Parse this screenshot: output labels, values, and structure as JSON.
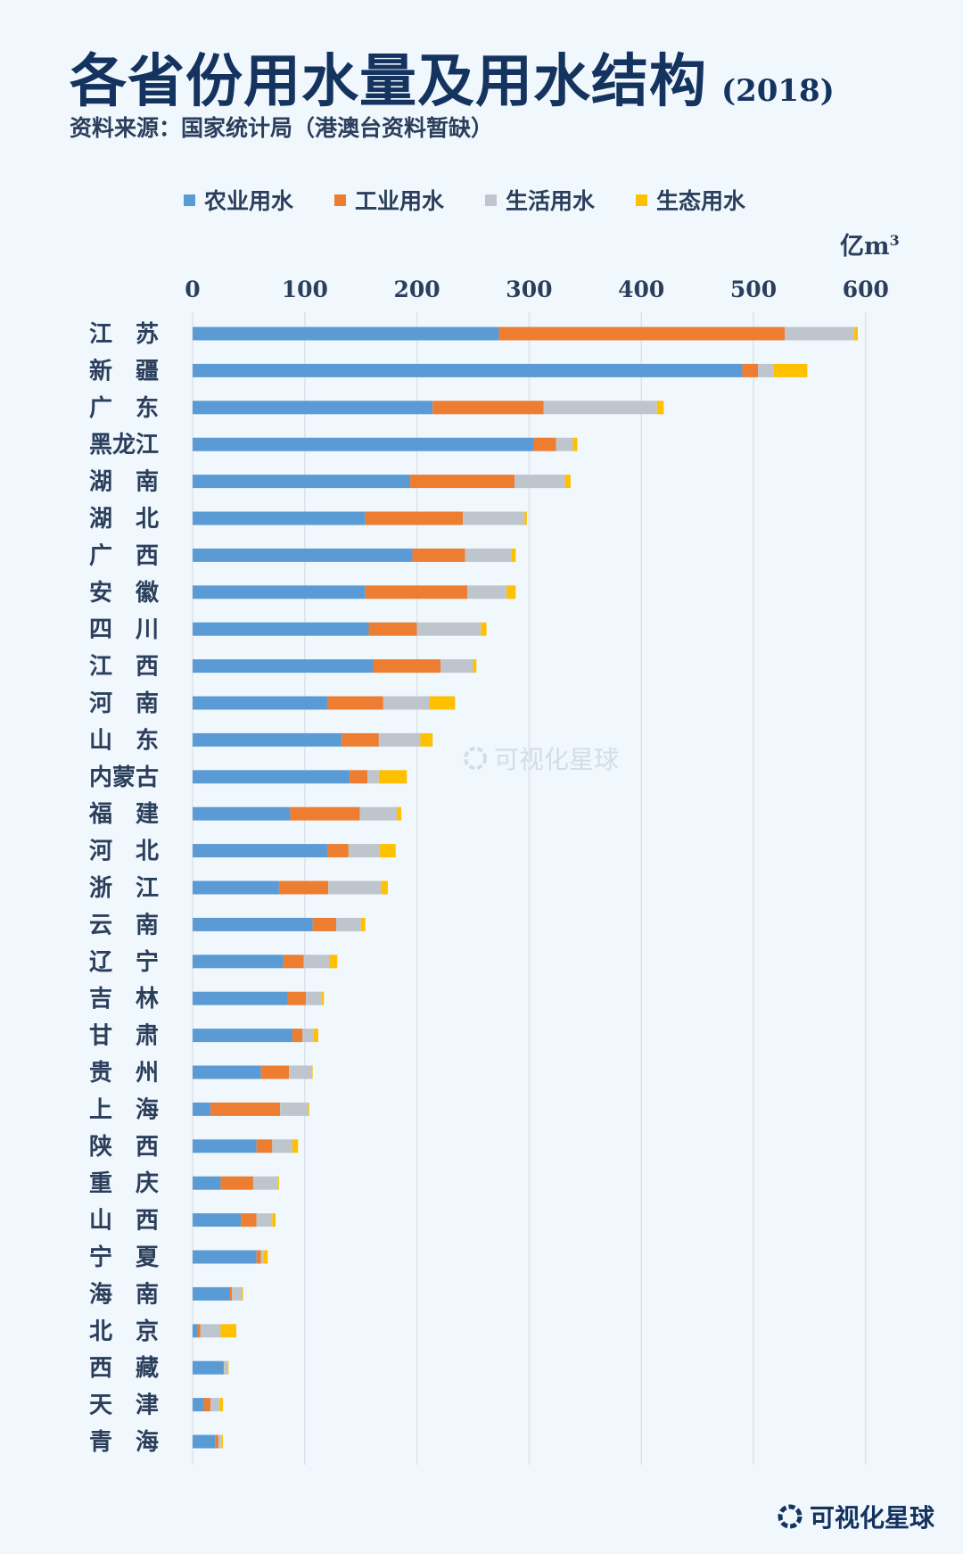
{
  "header": {
    "title": "各省份用水量及用水结构",
    "title_year": "(2018)",
    "subtitle": "资料来源：国家统计局（港澳台资料暂缺）"
  },
  "unit_label": "亿m",
  "unit_power": "3",
  "watermark": "可视化星球",
  "footer_logo": "可视化星球",
  "chart_data": {
    "type": "bar",
    "orientation": "horizontal",
    "stacked": true,
    "xlim": [
      0,
      600
    ],
    "x_ticks": [
      "0",
      "100",
      "200",
      "300",
      "400",
      "500",
      "600"
    ],
    "grid": true,
    "legend_position": "top",
    "categories": [
      "江　苏",
      "新　疆",
      "广　东",
      "黑龙江",
      "湖　南",
      "湖　北",
      "广　西",
      "安　徽",
      "四　川",
      "江　西",
      "河　南",
      "山　东",
      "内蒙古",
      "福　建",
      "河　北",
      "浙　江",
      "云　南",
      "辽　宁",
      "吉　林",
      "甘　肃",
      "贵　州",
      "上　海",
      "陕　西",
      "重　庆",
      "山　西",
      "宁　夏",
      "海　南",
      "北　京",
      "西　藏",
      "天　津",
      "青　海"
    ],
    "series": [
      {
        "name": "农业用水",
        "color": "#5b9bd5",
        "values": [
          273,
          490,
          214,
          304,
          194,
          154,
          196,
          154,
          157,
          161,
          120,
          133,
          140,
          87,
          120,
          77,
          107,
          81,
          85,
          89,
          61,
          16,
          57,
          25,
          43,
          57,
          33,
          4,
          27,
          10,
          20
        ]
      },
      {
        "name": "工业用水",
        "color": "#ed7d31",
        "values": [
          255,
          14,
          99,
          20,
          93,
          87,
          47,
          91,
          43,
          60,
          50,
          33,
          16,
          62,
          19,
          44,
          21,
          18,
          16,
          9,
          25,
          62,
          14,
          29,
          14,
          4,
          2,
          3,
          1,
          6,
          3
        ]
      },
      {
        "name": "生活用水",
        "color": "#bfc5cc",
        "values": [
          62,
          14,
          101,
          15,
          45,
          55,
          41,
          35,
          57,
          29,
          41,
          37,
          10,
          33,
          28,
          47,
          22,
          23,
          14,
          10,
          20,
          25,
          18,
          22,
          14,
          2,
          9,
          18,
          3,
          8,
          3
        ]
      },
      {
        "name": "生态用水",
        "color": "#ffc000",
        "values": [
          3,
          30,
          6,
          4,
          5,
          2,
          4,
          8,
          5,
          3,
          23,
          11,
          25,
          4,
          14,
          6,
          4,
          7,
          2,
          4,
          1,
          1,
          5,
          1,
          3,
          4,
          1,
          14,
          1,
          3,
          1
        ]
      }
    ]
  }
}
